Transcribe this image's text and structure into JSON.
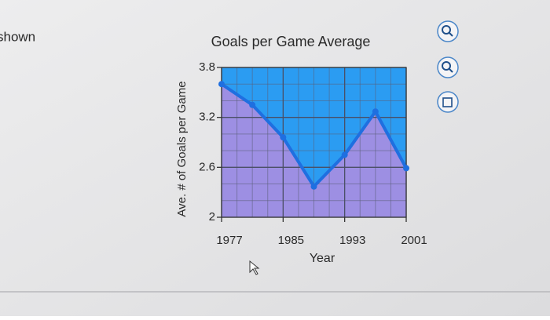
{
  "page": {
    "clipped_text": "shown"
  },
  "chart_data": {
    "type": "line",
    "title": "Goals per Game Average",
    "x_label": "Year",
    "y_label": "Ave. # of Goals per Game",
    "x": [
      1977,
      1981,
      1985,
      1989,
      1993,
      1997,
      2001
    ],
    "series": [
      {
        "name": "Goals per Game",
        "color": "#1f6fe0",
        "values": [
          3.6,
          3.35,
          2.96,
          2.37,
          2.75,
          3.27,
          2.59
        ]
      }
    ],
    "xlim": [
      1977,
      2001
    ],
    "xticks": [
      1977,
      1985,
      1993,
      2001
    ],
    "ylim": [
      2,
      3.8
    ],
    "yticks": [
      2,
      2.6,
      3.2,
      3.8
    ],
    "minor_xticks": [
      1979,
      1981,
      1983,
      1987,
      1989,
      1991,
      1995,
      1997,
      1999
    ],
    "minor_yticks": [
      2.2,
      2.4,
      2.8,
      3.0,
      3.4,
      3.6
    ],
    "grid": true,
    "area_below_color": "#9d8fe3",
    "area_above_color": "#2b9cf2"
  }
}
